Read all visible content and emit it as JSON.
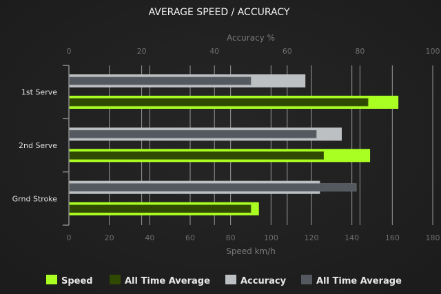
{
  "chart_data": {
    "type": "bar",
    "orientation": "horizontal",
    "title": "AVERAGE SPEED / ACCURACY",
    "categories": [
      "1st Serve",
      "2nd Serve",
      "Grnd Stroke"
    ],
    "speed_axis": {
      "label": "Speed km/h",
      "range": [
        0,
        180
      ],
      "ticks": [
        0,
        20,
        40,
        60,
        80,
        100,
        120,
        140,
        160,
        180
      ],
      "position": "bottom"
    },
    "accuracy_axis": {
      "label": "Accuracy %",
      "range": [
        0,
        100
      ],
      "ticks": [
        0,
        20,
        40,
        60,
        80,
        100
      ],
      "position": "top"
    },
    "grid": true,
    "legend_position": "bottom",
    "series": [
      {
        "name": "Speed",
        "axis": "speed",
        "values": [
          163,
          149,
          94
        ],
        "color": "#aaff22"
      },
      {
        "name": "All Time Average",
        "axis": "speed",
        "values": [
          148,
          126,
          90
        ],
        "color": "#2f4a00"
      },
      {
        "name": "Accuracy",
        "axis": "accuracy",
        "values": [
          65,
          75,
          69
        ],
        "color": "#bcc0c2"
      },
      {
        "name": "All Time Average",
        "axis": "accuracy",
        "values": [
          50,
          68,
          79
        ],
        "color": "#545960"
      }
    ]
  }
}
